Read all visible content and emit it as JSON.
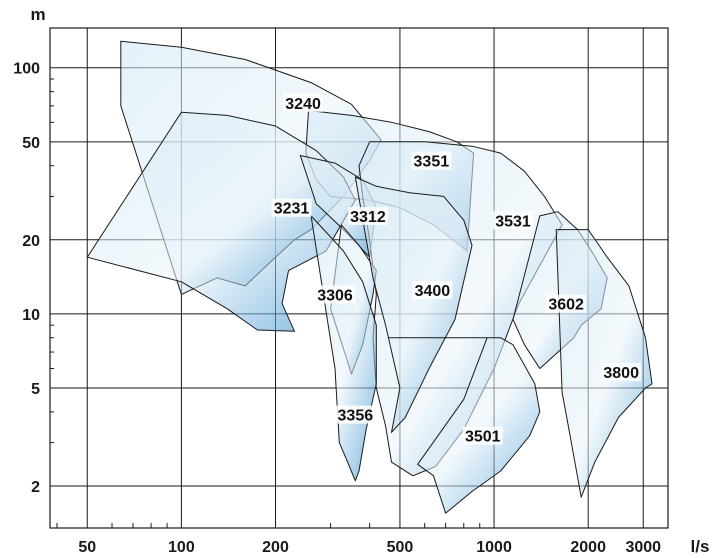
{
  "chart_data": {
    "type": "area",
    "title": "",
    "xlabel": "l/s",
    "ylabel": "m",
    "xscale": "log",
    "yscale": "log",
    "xlim": [
      38,
      3600
    ],
    "ylim": [
      1.35,
      145
    ],
    "grid": true,
    "x_ticks": [
      50,
      100,
      200,
      500,
      1000,
      2000,
      3000
    ],
    "x_tick_labels": [
      "50",
      "100",
      "200",
      "500",
      "1000",
      "2000",
      "3000"
    ],
    "y_ticks": [
      2,
      5,
      10,
      20,
      50,
      100
    ],
    "y_tick_labels": [
      "2",
      "5",
      "10",
      "20",
      "50",
      "100"
    ],
    "colors": {
      "fill_light": "#cde6f3",
      "fill_mid": "#eaf4fa",
      "fill_dark": "#0b7ac8",
      "outline": "#1a1a1a",
      "grid": "#1a1a1a"
    },
    "regions": [
      {
        "name": "3240",
        "label_at": [
          245,
          72
        ],
        "outline": [
          [
            64,
            128
          ],
          [
            100,
            121
          ],
          [
            160,
            108
          ],
          [
            260,
            87
          ],
          [
            350,
            71
          ],
          [
            435,
            51
          ],
          [
            400,
            42
          ],
          [
            330,
            30
          ],
          [
            260,
            22
          ],
          [
            230,
            20
          ],
          [
            190,
            16
          ],
          [
            160,
            13
          ],
          [
            130,
            14
          ],
          [
            100,
            12
          ],
          [
            64,
            70
          ]
        ]
      },
      {
        "name": "3351",
        "label_at": [
          630,
          42
        ],
        "outline": [
          [
            255,
            67
          ],
          [
            350,
            64
          ],
          [
            470,
            60
          ],
          [
            620,
            55
          ],
          [
            760,
            50
          ],
          [
            860,
            45
          ],
          [
            820,
            18
          ],
          [
            640,
            23
          ],
          [
            500,
            27
          ],
          [
            400,
            29
          ],
          [
            300,
            30
          ],
          [
            270,
            35
          ],
          [
            250,
            45
          ]
        ]
      },
      {
        "name": "3231",
        "label_at": [
          225,
          27
        ],
        "outline": [
          [
            100,
            66
          ],
          [
            140,
            64
          ],
          [
            200,
            58
          ],
          [
            270,
            46
          ],
          [
            330,
            36
          ],
          [
            360,
            29
          ],
          [
            290,
            18
          ],
          [
            220,
            15
          ],
          [
            210,
            11
          ],
          [
            230,
            8.5
          ],
          [
            175,
            8.6
          ],
          [
            140,
            10.5
          ],
          [
            100,
            13.5
          ],
          [
            50,
            17
          ]
        ]
      },
      {
        "name": "3312",
        "label_at": [
          395,
          25
        ],
        "outline": [
          [
            240,
            44
          ],
          [
            310,
            41
          ],
          [
            380,
            35
          ],
          [
            420,
            27
          ],
          [
            400,
            17
          ],
          [
            330,
            22
          ],
          [
            270,
            28
          ]
        ]
      },
      {
        "name": "3531",
        "label_at": [
          1150,
          24
        ],
        "outline": [
          [
            400,
            50
          ],
          [
            600,
            50
          ],
          [
            850,
            48
          ],
          [
            1050,
            45
          ],
          [
            1250,
            38
          ],
          [
            1450,
            30
          ],
          [
            1650,
            23
          ],
          [
            1200,
            11
          ],
          [
            1000,
            6
          ],
          [
            800,
            3.4
          ],
          [
            650,
            2.4
          ],
          [
            550,
            2.2
          ],
          [
            470,
            2.5
          ],
          [
            450,
            3.5
          ],
          [
            420,
            5
          ],
          [
            410,
            8
          ],
          [
            420,
            12
          ],
          [
            400,
            20
          ],
          [
            380,
            30
          ],
          [
            370,
            40
          ]
        ]
      },
      {
        "name": "3306",
        "label_at": [
          310,
          12
        ],
        "outline": [
          [
            325,
            23
          ],
          [
            370,
            19
          ],
          [
            420,
            15
          ],
          [
            410,
            12
          ],
          [
            380,
            7.5
          ],
          [
            350,
            5.7
          ],
          [
            300,
            10.5
          ]
        ]
      },
      {
        "name": "3400",
        "label_at": [
          635,
          12.5
        ],
        "outline": [
          [
            360,
            36
          ],
          [
            420,
            33
          ],
          [
            540,
            31
          ],
          [
            690,
            30
          ],
          [
            800,
            24
          ],
          [
            850,
            19
          ],
          [
            750,
            9.5
          ],
          [
            620,
            6
          ],
          [
            520,
            3.8
          ],
          [
            470,
            3.3
          ],
          [
            500,
            5
          ],
          [
            450,
            9
          ],
          [
            410,
            14
          ]
        ]
      },
      {
        "name": "3602",
        "label_at": [
          1700,
          11
        ],
        "outline": [
          [
            1400,
            25
          ],
          [
            1600,
            26
          ],
          [
            1850,
            22
          ],
          [
            2050,
            18
          ],
          [
            2300,
            14
          ],
          [
            2200,
            10.5
          ],
          [
            1900,
            9
          ],
          [
            1800,
            8
          ],
          [
            1400,
            6
          ],
          [
            1250,
            7.5
          ],
          [
            1150,
            9.5
          ]
        ]
      },
      {
        "name": "3800",
        "label_at": [
          2550,
          5.8
        ],
        "outline": [
          [
            1580,
            22
          ],
          [
            2000,
            22
          ],
          [
            2300,
            17
          ],
          [
            2700,
            13
          ],
          [
            3050,
            8
          ],
          [
            3200,
            5.2
          ],
          [
            3050,
            5
          ],
          [
            2500,
            3.8
          ],
          [
            2100,
            2.5
          ],
          [
            1900,
            1.8
          ],
          [
            1750,
            3.2
          ],
          [
            1650,
            4.8
          ]
        ]
      },
      {
        "name": "3356",
        "label_at": [
          360,
          3.9
        ],
        "outline": [
          [
            260,
            25
          ],
          [
            330,
            18
          ],
          [
            380,
            13.5
          ],
          [
            420,
            9
          ],
          [
            420,
            5.2
          ],
          [
            390,
            3.4
          ],
          [
            370,
            2.3
          ],
          [
            360,
            2.1
          ],
          [
            340,
            2.5
          ],
          [
            320,
            3
          ],
          [
            310,
            6
          ]
        ]
      },
      {
        "name": "3501",
        "label_at": [
          920,
          3.2
        ],
        "outline": [
          [
            460,
            8
          ],
          [
            600,
            8
          ],
          [
            850,
            8
          ],
          [
            1050,
            8
          ],
          [
            1150,
            7.5
          ],
          [
            1350,
            5.2
          ],
          [
            1400,
            4
          ],
          [
            1300,
            3.2
          ],
          [
            1050,
            2.3
          ],
          [
            850,
            1.9
          ],
          [
            700,
            1.55
          ],
          [
            640,
            2.2
          ],
          [
            570,
            2.45
          ],
          [
            800,
            4.5
          ],
          [
            950,
            8
          ]
        ]
      }
    ]
  }
}
